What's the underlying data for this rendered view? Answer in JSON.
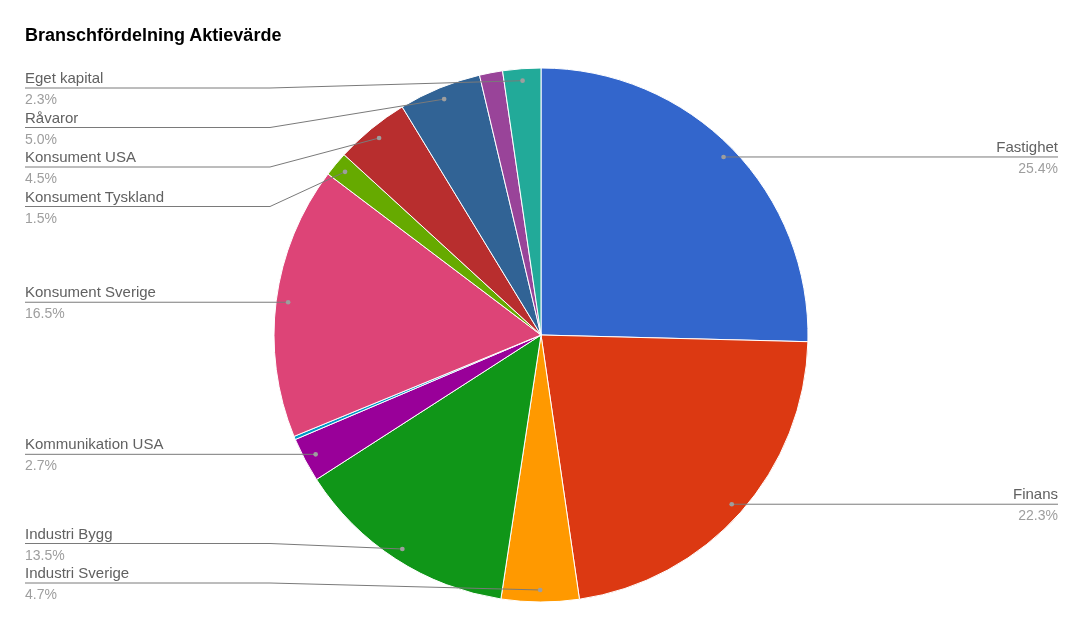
{
  "chart_data": {
    "type": "pie",
    "title": "Branschfördelning Aktievärde",
    "categories": [
      "Fastighet",
      "Finans",
      "Industri Sverige",
      "Industri Bygg",
      "Kommunikation USA",
      null,
      "Konsument Sverige",
      "Konsument Tyskland",
      "Konsument USA",
      "Råvaror",
      null,
      "Eget kapital"
    ],
    "values": [
      25.4,
      22.3,
      4.7,
      13.5,
      2.7,
      0.2,
      16.5,
      1.5,
      4.5,
      5.0,
      1.4,
      2.3
    ],
    "colors": [
      "#3366cc",
      "#dc3912",
      "#ff9900",
      "#109618",
      "#990099",
      "#0099c6",
      "#dd4477",
      "#66aa00",
      "#b82e2e",
      "#316395",
      "#994499",
      "#22aa99"
    ],
    "value_labels": [
      "25.4%",
      "22.3%",
      "4.7%",
      "13.5%",
      "2.7%",
      null,
      "16.5%",
      "1.5%",
      "4.5%",
      "5.0%",
      null,
      "2.3%"
    ]
  }
}
